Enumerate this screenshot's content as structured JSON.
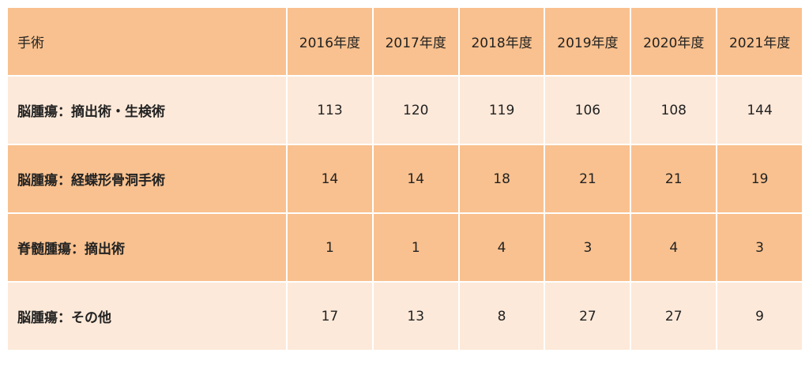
{
  "table": {
    "header": [
      "手術",
      "2016年度",
      "2017年度",
      "2018年度",
      "2019年度",
      "2020年度",
      "2021年度"
    ],
    "rows": [
      [
        "脳腫瘍：摘出術・生検術",
        113,
        120,
        119,
        106,
        108,
        144
      ],
      [
        "脳腫瘍：経蝶形骨洞手術",
        14,
        14,
        18,
        21,
        21,
        19
      ],
      [
        "脊髄腫瘍：摘出術",
        1,
        1,
        4,
        3,
        4,
        3
      ],
      [
        "脳腫瘍：その他",
        17,
        13,
        8,
        27,
        27,
        9
      ]
    ]
  }
}
